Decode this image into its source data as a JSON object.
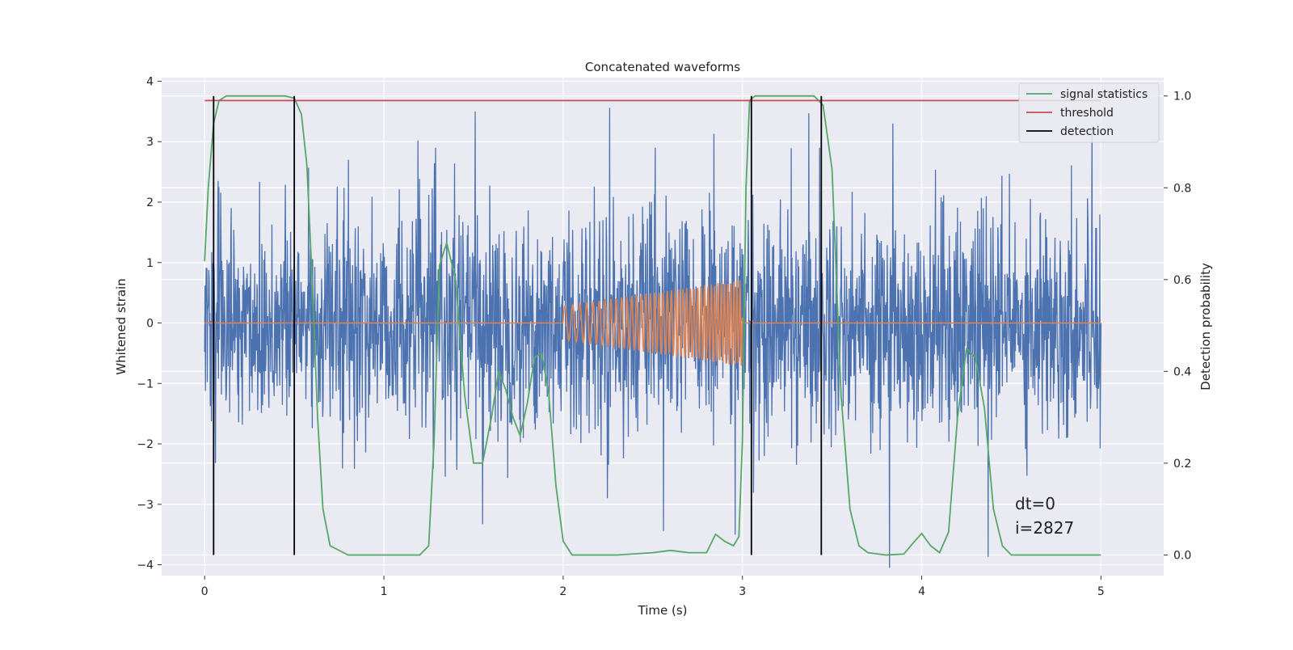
{
  "chart_data": {
    "type": "line",
    "title": "Concatenated waveforms",
    "xlabel": "Time (s)",
    "ylabel": "Whitened strain",
    "y2label": "Detection probability",
    "xlim": [
      -0.24,
      5.35
    ],
    "ylim": [
      -4.18,
      4.06
    ],
    "y2lim": [
      -0.045,
      1.04
    ],
    "xticks": [
      0,
      1,
      2,
      3,
      4,
      5
    ],
    "xtick_labels": [
      "0",
      "1",
      "2",
      "3",
      "4",
      "5"
    ],
    "yticks": [
      -4,
      -3,
      -2,
      -1,
      0,
      1,
      2,
      3,
      4
    ],
    "ytick_labels": [
      "−4",
      "−3",
      "−2",
      "−1",
      "0",
      "1",
      "2",
      "3",
      "4"
    ],
    "y2ticks": [
      0.0,
      0.2,
      0.4,
      0.6,
      0.8,
      1.0
    ],
    "y2tick_labels": [
      "0.0",
      "0.2",
      "0.4",
      "0.6",
      "0.8",
      "1.0"
    ],
    "grid": true,
    "legend_position": "top-right",
    "annotations": [
      "dt=0",
      "i=2827"
    ],
    "colors": {
      "strain": "#4c72b0",
      "waveform": "#dd8452",
      "signal_statistics": "#55a868",
      "threshold": "#c44e52",
      "detection": "#000000",
      "background": "#eaeaf2"
    },
    "series": [
      {
        "name": "",
        "role": "whitened-strain-noise",
        "axis": "left",
        "x_range": [
          0,
          5
        ],
        "typical_envelope": [
          -2.0,
          2.0
        ],
        "peak_values": [
          {
            "x": 0.58,
            "y": 2.57
          },
          {
            "x": 1.19,
            "y": 3.02
          },
          {
            "x": 1.51,
            "y": 3.5
          },
          {
            "x": 2.26,
            "y": 3.56
          },
          {
            "x": 2.84,
            "y": 3.13
          },
          {
            "x": 3.37,
            "y": 3.47
          },
          {
            "x": 3.84,
            "y": 3.3
          },
          {
            "x": 4.95,
            "y": 3.26
          },
          {
            "x": 1.55,
            "y": -3.33
          },
          {
            "x": 2.56,
            "y": -3.44
          },
          {
            "x": 2.96,
            "y": -3.5
          },
          {
            "x": 3.82,
            "y": -4.05
          },
          {
            "x": 4.37,
            "y": -3.87
          }
        ]
      },
      {
        "name": "",
        "role": "injected-chirp",
        "axis": "left",
        "x_range": [
          0,
          5
        ],
        "chirp_window": [
          2.0,
          3.0
        ],
        "amplitude_start": 0.28,
        "amplitude_end": 0.72,
        "freq_start_hz": 22,
        "freq_end_hz": 60
      },
      {
        "name": "signal statistics",
        "axis": "right",
        "x": [
          0,
          0.02,
          0.05,
          0.08,
          0.12,
          0.2,
          0.45,
          0.5,
          0.54,
          0.57,
          0.6,
          0.63,
          0.66,
          0.7,
          0.8,
          1.0,
          1.2,
          1.25,
          1.28,
          1.31,
          1.35,
          1.4,
          1.45,
          1.5,
          1.55,
          1.6,
          1.64,
          1.68,
          1.72,
          1.76,
          1.8,
          1.84,
          1.88,
          1.92,
          1.96,
          2.0,
          2.05,
          2.1,
          2.3,
          2.5,
          2.6,
          2.7,
          2.8,
          2.85,
          2.9,
          2.95,
          2.98,
          3.0,
          3.02,
          3.04,
          3.07,
          3.1,
          3.2,
          3.4,
          3.45,
          3.5,
          3.55,
          3.6,
          3.65,
          3.7,
          3.8,
          3.9,
          3.95,
          4.0,
          4.05,
          4.1,
          4.15,
          4.2,
          4.25,
          4.3,
          4.35,
          4.4,
          4.45,
          4.5,
          4.6,
          4.8,
          5.0
        ],
        "values": [
          0.64,
          0.8,
          0.94,
          0.99,
          1.0,
          1.0,
          1.0,
          0.995,
          0.96,
          0.85,
          0.6,
          0.3,
          0.1,
          0.02,
          0.0,
          0.0,
          0.0,
          0.02,
          0.25,
          0.63,
          0.68,
          0.6,
          0.35,
          0.2,
          0.2,
          0.3,
          0.4,
          0.36,
          0.3,
          0.26,
          0.33,
          0.43,
          0.44,
          0.35,
          0.15,
          0.03,
          0.0,
          0.0,
          0.0,
          0.005,
          0.01,
          0.005,
          0.005,
          0.045,
          0.03,
          0.02,
          0.04,
          0.25,
          0.8,
          0.99,
          1.0,
          1.0,
          1.0,
          1.0,
          0.98,
          0.84,
          0.35,
          0.1,
          0.02,
          0.005,
          0.0,
          0.002,
          0.025,
          0.047,
          0.02,
          0.005,
          0.05,
          0.3,
          0.45,
          0.43,
          0.32,
          0.1,
          0.02,
          0.0,
          0.0,
          0.0,
          0.0
        ]
      },
      {
        "name": "threshold",
        "axis": "right",
        "x": [
          0,
          5
        ],
        "values": [
          0.99,
          0.99
        ]
      },
      {
        "name": "detection",
        "axis": "right",
        "style": "vertical-lines",
        "x": [
          0.05,
          0.5,
          3.05,
          3.44
        ],
        "range": [
          0.0,
          1.0
        ]
      }
    ]
  }
}
